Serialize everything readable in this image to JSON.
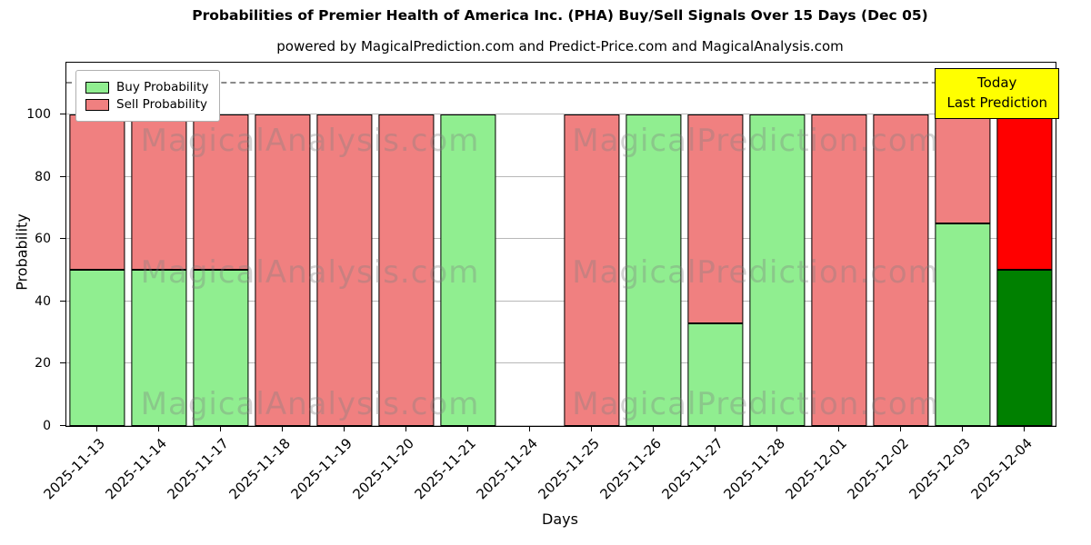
{
  "chart_data": {
    "type": "bar",
    "title": "Probabilities of Premier Health of America Inc. (PHA) Buy/Sell Signals Over 15 Days (Dec 05)",
    "subtitle": "powered by MagicalPrediction.com and Predict-Price.com and MagicalAnalysis.com",
    "xlabel": "Days",
    "ylabel": "Probability",
    "ylim": [
      0,
      116.6
    ],
    "yticks": [
      0,
      20,
      40,
      60,
      80,
      100
    ],
    "dashed_line_y": 110,
    "grid": true,
    "legend_position": "upper left",
    "categories": [
      "2025-11-13",
      "2025-11-14",
      "2025-11-17",
      "2025-11-18",
      "2025-11-19",
      "2025-11-20",
      "2025-11-21",
      "2025-11-24",
      "2025-11-25",
      "2025-11-26",
      "2025-11-27",
      "2025-11-28",
      "2025-12-01",
      "2025-12-02",
      "2025-12-03",
      "2025-12-04"
    ],
    "series": [
      {
        "name": "Buy Probability",
        "color": "#90EE90",
        "values": [
          50,
          50,
          50,
          0,
          0,
          0,
          100,
          0,
          0,
          100,
          33,
          100,
          0,
          0,
          65,
          50
        ]
      },
      {
        "name": "Sell Probability",
        "color": "#F08080",
        "values": [
          50,
          50,
          50,
          100,
          100,
          100,
          0,
          0,
          100,
          0,
          67,
          0,
          100,
          100,
          35,
          50
        ]
      }
    ],
    "today": {
      "index": 15,
      "buy_color": "#008000",
      "sell_color": "#FF0000"
    },
    "annotation": {
      "lines": [
        "Today",
        "Last Prediction"
      ],
      "bg_color": "#FFFF00"
    },
    "watermarks": [
      "MagicalAnalysis.com",
      "MagicalPrediction.com"
    ],
    "colors": {
      "grid": "#b8b8b8",
      "bar_edge": "#000000",
      "dashed": "#8a8a8a"
    }
  }
}
